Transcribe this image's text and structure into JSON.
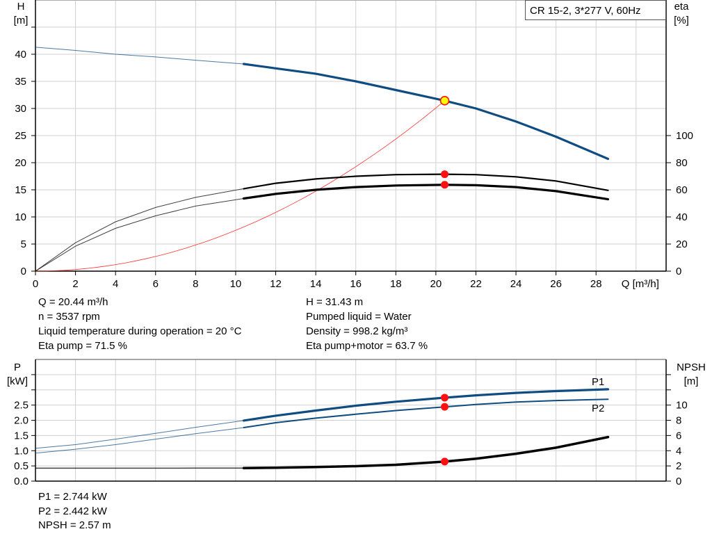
{
  "chart_data": [
    {
      "type": "line",
      "title": "CR 15-2, 3*277 V, 60Hz",
      "xlabel": "Q [m³/h]",
      "ylabel_left": [
        "H",
        "[m]"
      ],
      "ylabel_right": [
        "eta",
        "[%]"
      ],
      "xlim": [
        0,
        31.5
      ],
      "ylim_left": [
        0,
        50
      ],
      "ylim_right_ticks": [
        0,
        20,
        40,
        60,
        80,
        100
      ],
      "x_ticks": [
        0,
        2,
        4,
        6,
        8,
        10,
        12,
        14,
        16,
        18,
        20,
        22,
        24,
        26,
        28
      ],
      "y_ticks_left": [
        0,
        5,
        10,
        15,
        20,
        25,
        30,
        35,
        40
      ],
      "grid": true,
      "operating_range_start_q": 10.4,
      "series": [
        {
          "key": "H",
          "axis": "left",
          "color": "#0f4c81",
          "x": [
            0,
            2,
            4,
            6,
            8,
            10.4,
            12,
            14,
            16,
            18,
            20.44,
            22,
            24,
            26,
            28.6
          ],
          "y": [
            41.3,
            40.7,
            40.0,
            39.5,
            38.9,
            38.2,
            37.4,
            36.4,
            35.0,
            33.4,
            31.43,
            30.0,
            27.6,
            24.8,
            20.7
          ]
        },
        {
          "key": "eta_pump",
          "axis": "right",
          "color": "#000000",
          "x": [
            0,
            2,
            4,
            6,
            8,
            10.4,
            12,
            14,
            16,
            18,
            20.44,
            22,
            24,
            26,
            28.6
          ],
          "y": [
            0,
            21,
            36.4,
            47,
            54.4,
            60.8,
            64.8,
            68,
            70,
            71.2,
            71.5,
            71.2,
            69.6,
            66.5,
            59.6
          ]
        },
        {
          "key": "eta_pump_motor",
          "axis": "right",
          "color": "#000000",
          "x": [
            0,
            2,
            4,
            6,
            8,
            10.4,
            12,
            14,
            16,
            18,
            20.44,
            22,
            24,
            26,
            28.6
          ],
          "y": [
            0,
            18.4,
            31.6,
            40.8,
            48,
            53.6,
            57,
            60,
            62,
            63.2,
            63.7,
            63.4,
            62,
            59,
            53
          ]
        },
        {
          "key": "system_curve",
          "axis": "left",
          "color": "#ff3030",
          "x": [
            0,
            2,
            4,
            6,
            8,
            10,
            12,
            14,
            16,
            18,
            20.44
          ],
          "y": [
            0,
            0.3,
            1.2,
            2.7,
            4.8,
            7.5,
            10.8,
            14.7,
            19.2,
            24.3,
            31.43
          ]
        }
      ],
      "duty_point": {
        "q": 20.44,
        "h": 31.43,
        "eta_pump": 71.5,
        "eta_pump_motor": 63.7
      }
    },
    {
      "type": "line",
      "ylabel_left": [
        "P",
        "[kW]"
      ],
      "ylabel_right": [
        "NPSH",
        "[m]"
      ],
      "xlim": [
        0,
        31.5
      ],
      "ylim_left": [
        0,
        4.0
      ],
      "y_ticks_left": [
        "0.0",
        "0.5",
        "1.0",
        "1.5",
        "2.0",
        "2.5"
      ],
      "y_ticks_right": [
        0,
        2,
        4,
        6,
        8,
        10
      ],
      "grid": true,
      "series": [
        {
          "key": "P1",
          "name": "P1",
          "axis": "left",
          "color": "#0f4c81",
          "x": [
            0,
            2,
            4,
            6,
            8,
            10.4,
            12,
            14,
            16,
            18,
            20.44,
            22,
            24,
            26,
            28.6
          ],
          "y": [
            1.08,
            1.2,
            1.38,
            1.57,
            1.77,
            1.99,
            2.15,
            2.32,
            2.48,
            2.61,
            2.744,
            2.82,
            2.9,
            2.96,
            3.02
          ]
        },
        {
          "key": "P2",
          "name": "P2",
          "axis": "left",
          "color": "#0f4c81",
          "x": [
            0,
            2,
            4,
            6,
            8,
            10.4,
            12,
            14,
            16,
            18,
            20.44,
            22,
            24,
            26,
            28.6
          ],
          "y": [
            0.92,
            1.05,
            1.2,
            1.38,
            1.56,
            1.76,
            1.92,
            2.07,
            2.2,
            2.32,
            2.442,
            2.52,
            2.6,
            2.65,
            2.69
          ]
        },
        {
          "key": "NPSH",
          "axis": "right",
          "color": "#000000",
          "x": [
            0,
            4,
            8,
            10.4,
            12,
            14,
            16,
            18,
            20.44,
            22,
            24,
            26,
            28.6
          ],
          "y": [
            1.7,
            1.7,
            1.71,
            1.72,
            1.76,
            1.85,
            1.97,
            2.15,
            2.57,
            2.95,
            3.6,
            4.4,
            5.8
          ]
        }
      ],
      "duty_point": {
        "q": 20.44,
        "p1": 2.744,
        "p2": 2.442,
        "npsh": 2.57
      }
    }
  ],
  "info_top_left": [
    "Q = 20.44 m³/h",
    "n = 3537 rpm",
    "Liquid temperature during operation = 20 °C",
    "Eta pump = 71.5 %"
  ],
  "info_top_right": [
    "H = 31.43 m",
    "Pumped liquid = Water",
    "Density = 998.2 kg/m³",
    "Eta pump+motor = 63.7 %"
  ],
  "info_bottom": [
    "P1 = 2.744 kW",
    "P2 = 2.442 kW",
    "NPSH = 2.57 m"
  ]
}
